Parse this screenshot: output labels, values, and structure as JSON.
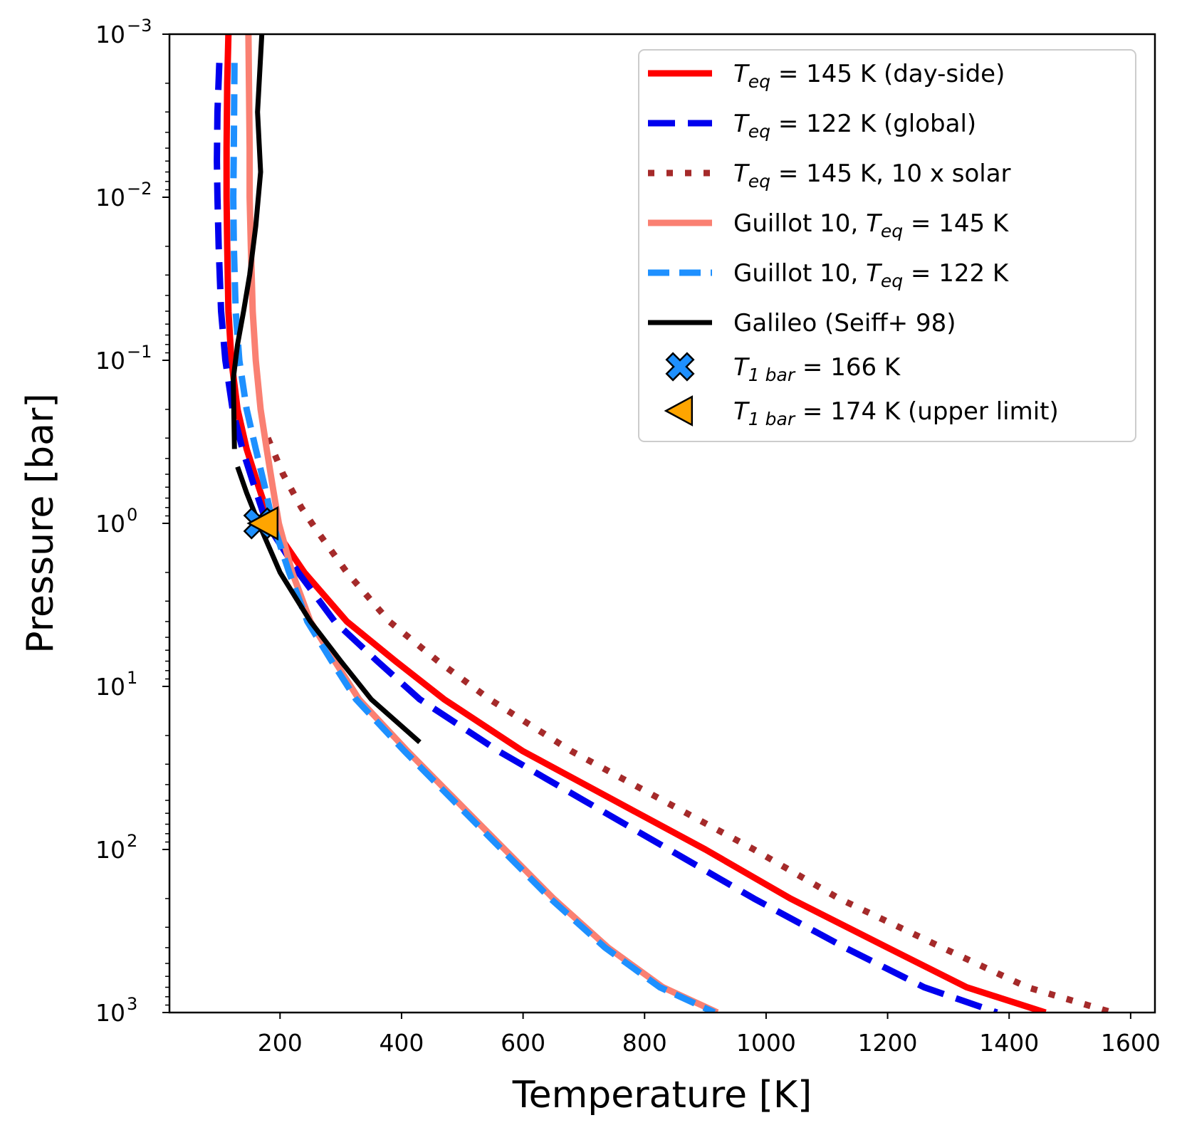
{
  "chart_data": {
    "type": "line",
    "xlabel": "Temperature [K]",
    "ylabel": "Pressure [bar]",
    "xlim": [
      18,
      1640
    ],
    "ylim": [
      0.001,
      1000
    ],
    "y_scale": "log",
    "y_inverted": true,
    "grid": false,
    "legend_position": "top-right",
    "x_ticks": [
      200,
      400,
      600,
      800,
      1000,
      1200,
      1400,
      1600
    ],
    "x_tick_labels": [
      "200",
      "400",
      "600",
      "800",
      "1000",
      "1200",
      "1400",
      "1600"
    ],
    "y_ticks": [
      0.001,
      0.01,
      0.1,
      1,
      10,
      100,
      1000
    ],
    "y_tick_labels": [
      {
        "base": "10",
        "exp": "−3"
      },
      {
        "base": "10",
        "exp": "−2"
      },
      {
        "base": "10",
        "exp": "−1"
      },
      {
        "base": "10",
        "exp": "0"
      },
      {
        "base": "10",
        "exp": "1"
      },
      {
        "base": "10",
        "exp": "2"
      },
      {
        "base": "10",
        "exp": "3"
      }
    ],
    "series": [
      {
        "id": "teq145-day",
        "legend": [
          {
            "t": "T",
            "i": true
          },
          {
            "t": "eq",
            "i": true,
            "sub": true
          },
          {
            "t": " = 145 K (day-side)"
          }
        ],
        "color": "#ff0000",
        "style": "solid",
        "points": [
          [
            115,
            0.001
          ],
          [
            113,
            0.002
          ],
          [
            112,
            0.005
          ],
          [
            112,
            0.01
          ],
          [
            113,
            0.02
          ],
          [
            115,
            0.05
          ],
          [
            120,
            0.1
          ],
          [
            130,
            0.2
          ],
          [
            145,
            0.35
          ],
          [
            165,
            0.6
          ],
          [
            185,
            1
          ],
          [
            240,
            2
          ],
          [
            310,
            4
          ],
          [
            390,
            7
          ],
          [
            470,
            12
          ],
          [
            600,
            25
          ],
          [
            750,
            50
          ],
          [
            900,
            100
          ],
          [
            1040,
            200
          ],
          [
            1200,
            400
          ],
          [
            1330,
            700
          ],
          [
            1460,
            1000
          ]
        ]
      },
      {
        "id": "teq122-global",
        "legend": [
          {
            "t": "T",
            "i": true
          },
          {
            "t": "eq",
            "i": true,
            "sub": true
          },
          {
            "t": " = 122 K (global)"
          }
        ],
        "color": "#0000ee",
        "style": "dashed",
        "points": [
          [
            100,
            0.0015
          ],
          [
            97,
            0.003
          ],
          [
            96,
            0.006
          ],
          [
            97,
            0.01
          ],
          [
            99,
            0.02
          ],
          [
            103,
            0.05
          ],
          [
            110,
            0.1
          ],
          [
            122,
            0.2
          ],
          [
            138,
            0.35
          ],
          [
            158,
            0.6
          ],
          [
            178,
            1
          ],
          [
            230,
            2
          ],
          [
            290,
            4
          ],
          [
            360,
            7
          ],
          [
            430,
            12
          ],
          [
            560,
            25
          ],
          [
            700,
            50
          ],
          [
            840,
            100
          ],
          [
            980,
            200
          ],
          [
            1130,
            400
          ],
          [
            1260,
            700
          ],
          [
            1380,
            1000
          ]
        ]
      },
      {
        "id": "teq145-10xsolar",
        "legend": [
          {
            "t": "T",
            "i": true
          },
          {
            "t": "eq",
            "i": true,
            "sub": true
          },
          {
            "t": " = 145 K, 10 x solar"
          }
        ],
        "color": "#a52a2a",
        "style": "dotted",
        "points": [
          [
            180,
            0.3
          ],
          [
            205,
            0.5
          ],
          [
            235,
            0.8
          ],
          [
            260,
            1.1
          ],
          [
            310,
            2
          ],
          [
            380,
            4
          ],
          [
            460,
            7
          ],
          [
            545,
            12
          ],
          [
            680,
            25
          ],
          [
            830,
            50
          ],
          [
            980,
            100
          ],
          [
            1120,
            200
          ],
          [
            1290,
            400
          ],
          [
            1430,
            700
          ],
          [
            1570,
            1000
          ]
        ]
      },
      {
        "id": "guillot-145",
        "legend": [
          {
            "t": "Guillot 10, "
          },
          {
            "t": "T",
            "i": true
          },
          {
            "t": "eq",
            "i": true,
            "sub": true
          },
          {
            "t": " = 145 K"
          }
        ],
        "color": "#fa8072",
        "style": "solid",
        "points": [
          [
            148,
            0.001
          ],
          [
            150,
            0.005
          ],
          [
            150,
            0.01
          ],
          [
            152,
            0.02
          ],
          [
            155,
            0.05
          ],
          [
            160,
            0.1
          ],
          [
            168,
            0.2
          ],
          [
            178,
            0.35
          ],
          [
            188,
            0.6
          ],
          [
            198,
            1
          ],
          [
            220,
            2
          ],
          [
            250,
            4
          ],
          [
            290,
            7
          ],
          [
            330,
            12
          ],
          [
            410,
            25
          ],
          [
            490,
            50
          ],
          [
            570,
            100
          ],
          [
            650,
            200
          ],
          [
            740,
            400
          ],
          [
            830,
            700
          ],
          [
            920,
            1000
          ]
        ]
      },
      {
        "id": "guillot-122",
        "legend": [
          {
            "t": "Guillot 10, "
          },
          {
            "t": "T",
            "i": true
          },
          {
            "t": "eq",
            "i": true,
            "sub": true
          },
          {
            "t": " = 122 K"
          }
        ],
        "color": "#1e90ff",
        "style": "dashdot",
        "points": [
          [
            125,
            0.0015
          ],
          [
            124,
            0.005
          ],
          [
            123,
            0.01
          ],
          [
            124,
            0.02
          ],
          [
            127,
            0.05
          ],
          [
            133,
            0.1
          ],
          [
            145,
            0.2
          ],
          [
            160,
            0.35
          ],
          [
            175,
            0.6
          ],
          [
            188,
            1
          ],
          [
            215,
            2
          ],
          [
            245,
            4
          ],
          [
            285,
            7
          ],
          [
            325,
            12
          ],
          [
            405,
            25
          ],
          [
            485,
            50
          ],
          [
            565,
            100
          ],
          [
            645,
            200
          ],
          [
            735,
            400
          ],
          [
            825,
            700
          ],
          [
            915,
            1000
          ]
        ]
      },
      {
        "id": "galileo",
        "legend": [
          {
            "t": "Galileo (Seiff+ 98)"
          }
        ],
        "color": "#000000",
        "style": "solid-gap",
        "gap_after_index": 8,
        "points": [
          [
            170,
            0.001
          ],
          [
            163,
            0.003
          ],
          [
            168,
            0.007
          ],
          [
            160,
            0.015
          ],
          [
            150,
            0.03
          ],
          [
            140,
            0.05
          ],
          [
            130,
            0.08
          ],
          [
            123,
            0.13
          ],
          [
            125,
            0.35
          ],
          [
            130,
            0.45
          ],
          [
            145,
            0.65
          ],
          [
            165,
            1
          ],
          [
            200,
            2
          ],
          [
            250,
            4
          ],
          [
            300,
            7
          ],
          [
            350,
            12
          ],
          [
            430,
            22
          ]
        ]
      }
    ],
    "markers": [
      {
        "id": "t1bar-166",
        "legend": [
          {
            "t": "T",
            "i": true
          },
          {
            "t": "1 bar",
            "i": true,
            "sub": true
          },
          {
            "t": " = 166 K"
          }
        ],
        "shape": "X",
        "color": "#1e90ff",
        "x": 166,
        "y": 1
      },
      {
        "id": "t1bar-174",
        "legend": [
          {
            "t": "T",
            "i": true
          },
          {
            "t": "1 bar",
            "i": true,
            "sub": true
          },
          {
            "t": " = 174 K (upper limit)"
          }
        ],
        "shape": "triangle-left",
        "color": "#ffa500",
        "x": 174,
        "y": 1
      }
    ]
  }
}
